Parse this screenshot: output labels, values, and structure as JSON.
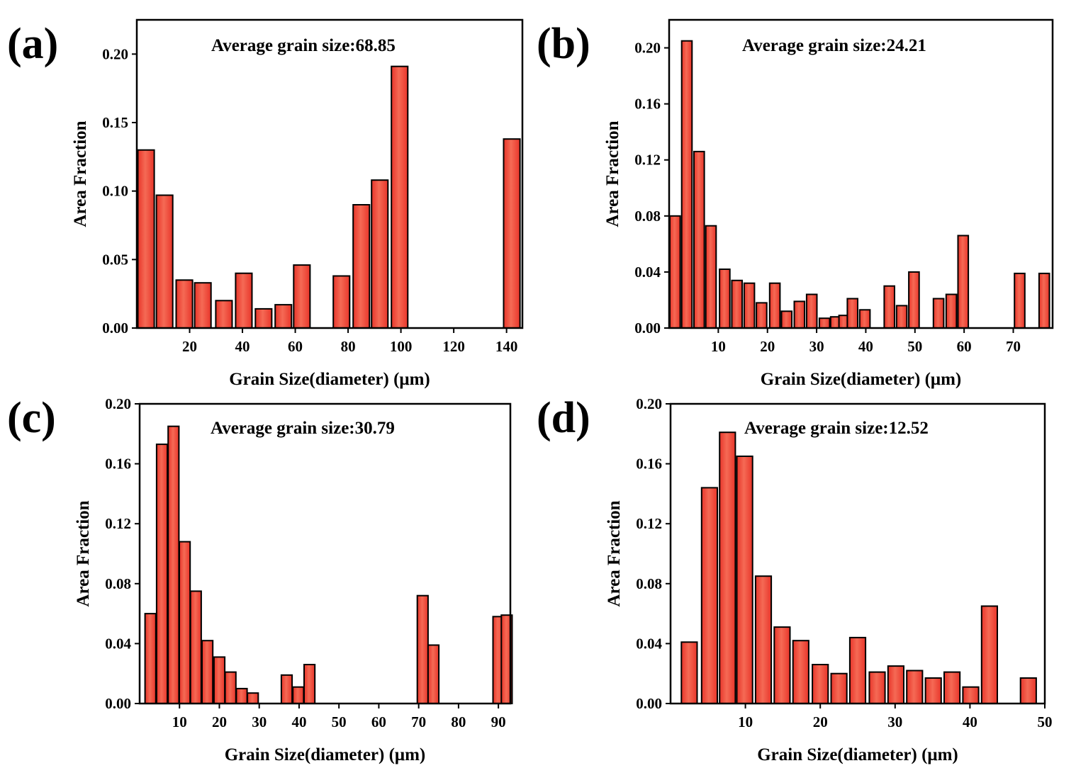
{
  "figure": {
    "bar_color": "#e8352a",
    "bar_highlight": "#f56a55",
    "edge_color": "#000000"
  },
  "chart_data": [
    {
      "panel": "(a)",
      "type": "bar",
      "title": "Average grain size:68.85",
      "xlabel": "Grain Size(diameter) (μm)",
      "ylabel": "Area Fraction",
      "xlim": [
        0,
        146
      ],
      "ylim": [
        0,
        0.225
      ],
      "xticks": [
        20,
        40,
        60,
        80,
        100,
        120,
        140
      ],
      "yticks": [
        0.0,
        0.05,
        0.1,
        0.15,
        0.2
      ],
      "ytick_labels": [
        "0.00",
        "0.05",
        "0.10",
        "0.15",
        "0.20"
      ],
      "bar_width": 6.2,
      "x": [
        3.5,
        10.5,
        18,
        25,
        33,
        40.5,
        48,
        55.5,
        62.5,
        77.5,
        85,
        92,
        99.5,
        142
      ],
      "values": [
        0.13,
        0.097,
        0.035,
        0.033,
        0.02,
        0.04,
        0.014,
        0.017,
        0.046,
        0.038,
        0.09,
        0.108,
        0.191,
        0.138
      ]
    },
    {
      "panel": "(b)",
      "type": "bar",
      "title": "Average grain size:24.21",
      "xlabel": "Grain Size(diameter) (μm)",
      "ylabel": "Area Fraction",
      "xlim": [
        0,
        78
      ],
      "ylim": [
        0,
        0.22
      ],
      "xticks": [
        10,
        20,
        30,
        40,
        50,
        60,
        70
      ],
      "yticks": [
        0.0,
        0.04,
        0.08,
        0.12,
        0.16,
        0.2
      ],
      "ytick_labels": [
        "0.00",
        "0.04",
        "0.08",
        "0.12",
        "0.16",
        "0.20"
      ],
      "bar_width": 2.1,
      "x": [
        1.2,
        3.6,
        6.1,
        8.5,
        11.3,
        13.8,
        16.3,
        18.8,
        21.5,
        23.9,
        26.5,
        29,
        31.6,
        33.9,
        35.6,
        37.3,
        39.8,
        44.8,
        47.3,
        49.8,
        54.8,
        57.4,
        59.8,
        71.3,
        76.3
      ],
      "values": [
        0.08,
        0.205,
        0.126,
        0.073,
        0.042,
        0.034,
        0.032,
        0.018,
        0.032,
        0.012,
        0.019,
        0.024,
        0.007,
        0.008,
        0.009,
        0.021,
        0.013,
        0.03,
        0.016,
        0.04,
        0.021,
        0.024,
        0.066,
        0.039,
        0.039
      ]
    },
    {
      "panel": "(c)",
      "type": "bar",
      "title": "Average grain size:30.79",
      "xlabel": "Grain Size(diameter) (μm)",
      "ylabel": "Area Fraction",
      "xlim": [
        0,
        93
      ],
      "ylim": [
        0,
        0.2
      ],
      "xticks": [
        10,
        20,
        30,
        40,
        50,
        60,
        70,
        80,
        90
      ],
      "yticks": [
        0.0,
        0.04,
        0.08,
        0.12,
        0.16,
        0.2
      ],
      "ytick_labels": [
        "0.00",
        "0.04",
        "0.08",
        "0.12",
        "0.16",
        "0.20"
      ],
      "bar_width": 2.7,
      "x": [
        2.7,
        5.6,
        8.5,
        11.3,
        14.1,
        17.0,
        20.0,
        22.8,
        25.6,
        28.4,
        36.9,
        39.8,
        42.6,
        71.0,
        73.7,
        90.0,
        92.1
      ],
      "values": [
        0.06,
        0.173,
        0.185,
        0.108,
        0.075,
        0.042,
        0.031,
        0.021,
        0.01,
        0.007,
        0.019,
        0.011,
        0.026,
        0.072,
        0.039,
        0.058,
        0.059
      ]
    },
    {
      "panel": "(d)",
      "type": "bar",
      "title": "Average grain size:12.52",
      "xlabel": "Grain Size(diameter) (μm)",
      "ylabel": "Area Fraction",
      "xlim": [
        0,
        50
      ],
      "ylim": [
        0,
        0.2
      ],
      "xticks": [
        10,
        20,
        30,
        40,
        50
      ],
      "yticks": [
        0.0,
        0.04,
        0.08,
        0.12,
        0.16,
        0.2
      ],
      "ytick_labels": [
        "0.00",
        "0.04",
        "0.08",
        "0.12",
        "0.16",
        "0.20"
      ],
      "bar_width": 2.1,
      "x": [
        2.5,
        5.2,
        7.6,
        9.9,
        12.4,
        14.9,
        17.4,
        20.0,
        22.5,
        25.0,
        27.6,
        30.1,
        32.6,
        35.1,
        37.6,
        40.1,
        42.6,
        47.8
      ],
      "values": [
        0.041,
        0.144,
        0.181,
        0.165,
        0.085,
        0.051,
        0.042,
        0.026,
        0.02,
        0.044,
        0.021,
        0.025,
        0.022,
        0.017,
        0.021,
        0.011,
        0.065,
        0.017
      ]
    }
  ]
}
